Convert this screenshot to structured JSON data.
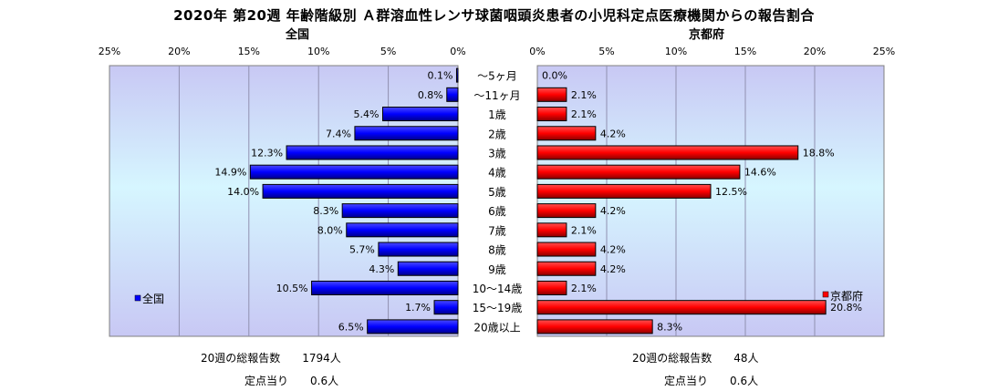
{
  "chart_data": {
    "type": "bar",
    "title": "2020年 第20週 年齢階級別 Ａ群溶血性レンサ球菌咽頭炎患者の小児科定点医療機関からの報告割合",
    "categories": [
      "～5ヶ月",
      "～11ヶ月",
      "1歳",
      "2歳",
      "3歳",
      "4歳",
      "5歳",
      "6歳",
      "7歳",
      "8歳",
      "9歳",
      "10～14歳",
      "15～19歳",
      "20歳以上"
    ],
    "series": [
      {
        "name": "全国",
        "color": "#0000ff",
        "values": [
          0.1,
          0.8,
          5.4,
          7.4,
          12.3,
          14.9,
          14.0,
          8.3,
          8.0,
          5.7,
          4.3,
          10.5,
          1.7,
          6.5
        ],
        "labels": [
          "0.1%",
          "0.8%",
          "5.4%",
          "7.4%",
          "12.3%",
          "14.9%",
          "14.0%",
          "8.3%",
          "8.0%",
          "5.7%",
          "4.3%",
          "10.5%",
          "1.7%",
          "6.5%"
        ]
      },
      {
        "name": "京都府",
        "color": "#ff0000",
        "values": [
          0.0,
          2.1,
          2.1,
          4.2,
          18.8,
          14.6,
          12.5,
          4.2,
          2.1,
          4.2,
          4.2,
          2.1,
          20.8,
          8.3
        ],
        "labels": [
          "0.0%",
          "2.1%",
          "2.1%",
          "4.2%",
          "18.8%",
          "14.6%",
          "12.5%",
          "4.2%",
          "2.1%",
          "4.2%",
          "4.2%",
          "2.1%",
          "20.8%",
          "8.3%"
        ]
      }
    ],
    "panels": {
      "left": {
        "title": "全国",
        "ticks": [
          "25%",
          "20%",
          "15%",
          "10%",
          "5%",
          "0%"
        ],
        "xlim": [
          0,
          25
        ]
      },
      "right": {
        "title": "京都府",
        "ticks": [
          "0%",
          "5%",
          "10%",
          "15%",
          "20%",
          "25%"
        ],
        "xlim": [
          0,
          25
        ]
      }
    },
    "legend": {
      "left_entry": "全国",
      "right_entry": "京都府",
      "placement": "inside-bottom"
    }
  },
  "footer": {
    "left_total": "20週の総報告数　　1794人",
    "left_per_site": "定点当り　　0.6人",
    "right_total": "20週の総報告数　　48人",
    "right_per_site": "定点当り　　0.6人"
  }
}
